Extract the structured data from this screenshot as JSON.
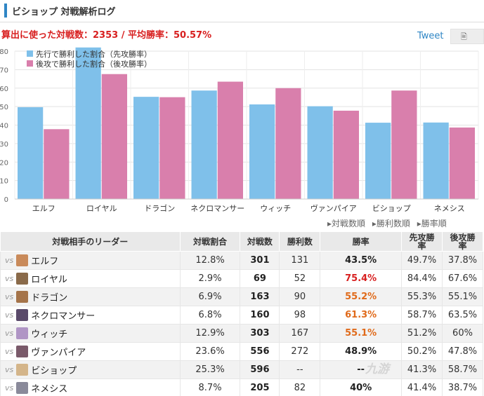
{
  "header": {
    "title": "ビショップ 対戦解析ログ"
  },
  "summary": {
    "text": "算出に使った対戦数：2353 / 平均勝率：50.57%"
  },
  "share": {
    "tweet_label": "Tweet",
    "doc_icon": "document-icon"
  },
  "colors": {
    "first": "#7fc0ea",
    "second": "#d97fac",
    "accent": "#2f86c5",
    "red": "#d81f1f",
    "orange": "#e06a1a"
  },
  "chart_data": {
    "type": "bar",
    "categories": [
      "エルフ",
      "ロイヤル",
      "ドラゴン",
      "ネクロマンサー",
      "ウィッチ",
      "ヴァンパイア",
      "ビショップ",
      "ネメシス"
    ],
    "series": [
      {
        "name": "先行で勝利した割合（先攻勝率）",
        "values": [
          49.7,
          84.4,
          55.3,
          58.7,
          51.2,
          50.2,
          41.3,
          41.4
        ]
      },
      {
        "name": "後攻で勝利した割合（後攻勝率）",
        "values": [
          37.8,
          67.6,
          55.1,
          63.5,
          60,
          47.8,
          58.7,
          38.7
        ]
      }
    ],
    "yticks": [
      0,
      10,
      20,
      30,
      40,
      50,
      60,
      70,
      80
    ],
    "ylim": [
      0,
      80
    ],
    "legend": "top-left",
    "grid": true,
    "title": "",
    "xlabel": "",
    "ylabel": ""
  },
  "sort": {
    "by_games": "▸対戦数順",
    "by_wins": "▸勝利数順",
    "by_rate": "▸勝率順"
  },
  "table": {
    "headers": {
      "leader": "対戦相手のリーダー",
      "share": "対戦割合",
      "games": "対戦数",
      "wins": "勝利数",
      "rate": "勝率",
      "first": "先攻勝\n率",
      "second": "後攻勝\n率"
    },
    "vs_label": "vs",
    "rows": [
      {
        "name": "エルフ",
        "share": "12.8%",
        "games": "301",
        "wins": "131",
        "rate": "43.5%",
        "first": "49.7%",
        "second": "37.8%",
        "avatar": "#c98a5a"
      },
      {
        "name": "ロイヤル",
        "share": "2.9%",
        "games": "69",
        "wins": "52",
        "rate": "75.4%",
        "first": "84.4%",
        "second": "67.6%",
        "avatar": "#8a6a4a"
      },
      {
        "name": "ドラゴン",
        "share": "6.9%",
        "games": "163",
        "wins": "90",
        "rate": "55.2%",
        "first": "55.3%",
        "second": "55.1%",
        "avatar": "#a5744a"
      },
      {
        "name": "ネクロマンサー",
        "share": "6.8%",
        "games": "160",
        "wins": "98",
        "rate": "61.3%",
        "first": "58.7%",
        "second": "63.5%",
        "avatar": "#5a4a6a"
      },
      {
        "name": "ウィッチ",
        "share": "12.9%",
        "games": "303",
        "wins": "167",
        "rate": "55.1%",
        "first": "51.2%",
        "second": "60%",
        "avatar": "#b095c5"
      },
      {
        "name": "ヴァンパイア",
        "share": "23.6%",
        "games": "556",
        "wins": "272",
        "rate": "48.9%",
        "first": "50.2%",
        "second": "47.8%",
        "avatar": "#7a5a6a"
      },
      {
        "name": "ビショップ",
        "share": "25.3%",
        "games": "596",
        "wins": "--",
        "rate": "--",
        "first": "41.3%",
        "second": "58.7%",
        "avatar": "#d4b58a"
      },
      {
        "name": "ネメシス",
        "share": "8.7%",
        "games": "205",
        "wins": "82",
        "rate": "40%",
        "first": "41.4%",
        "second": "38.7%",
        "avatar": "#8a8a9a"
      }
    ]
  },
  "watermark": "九游"
}
